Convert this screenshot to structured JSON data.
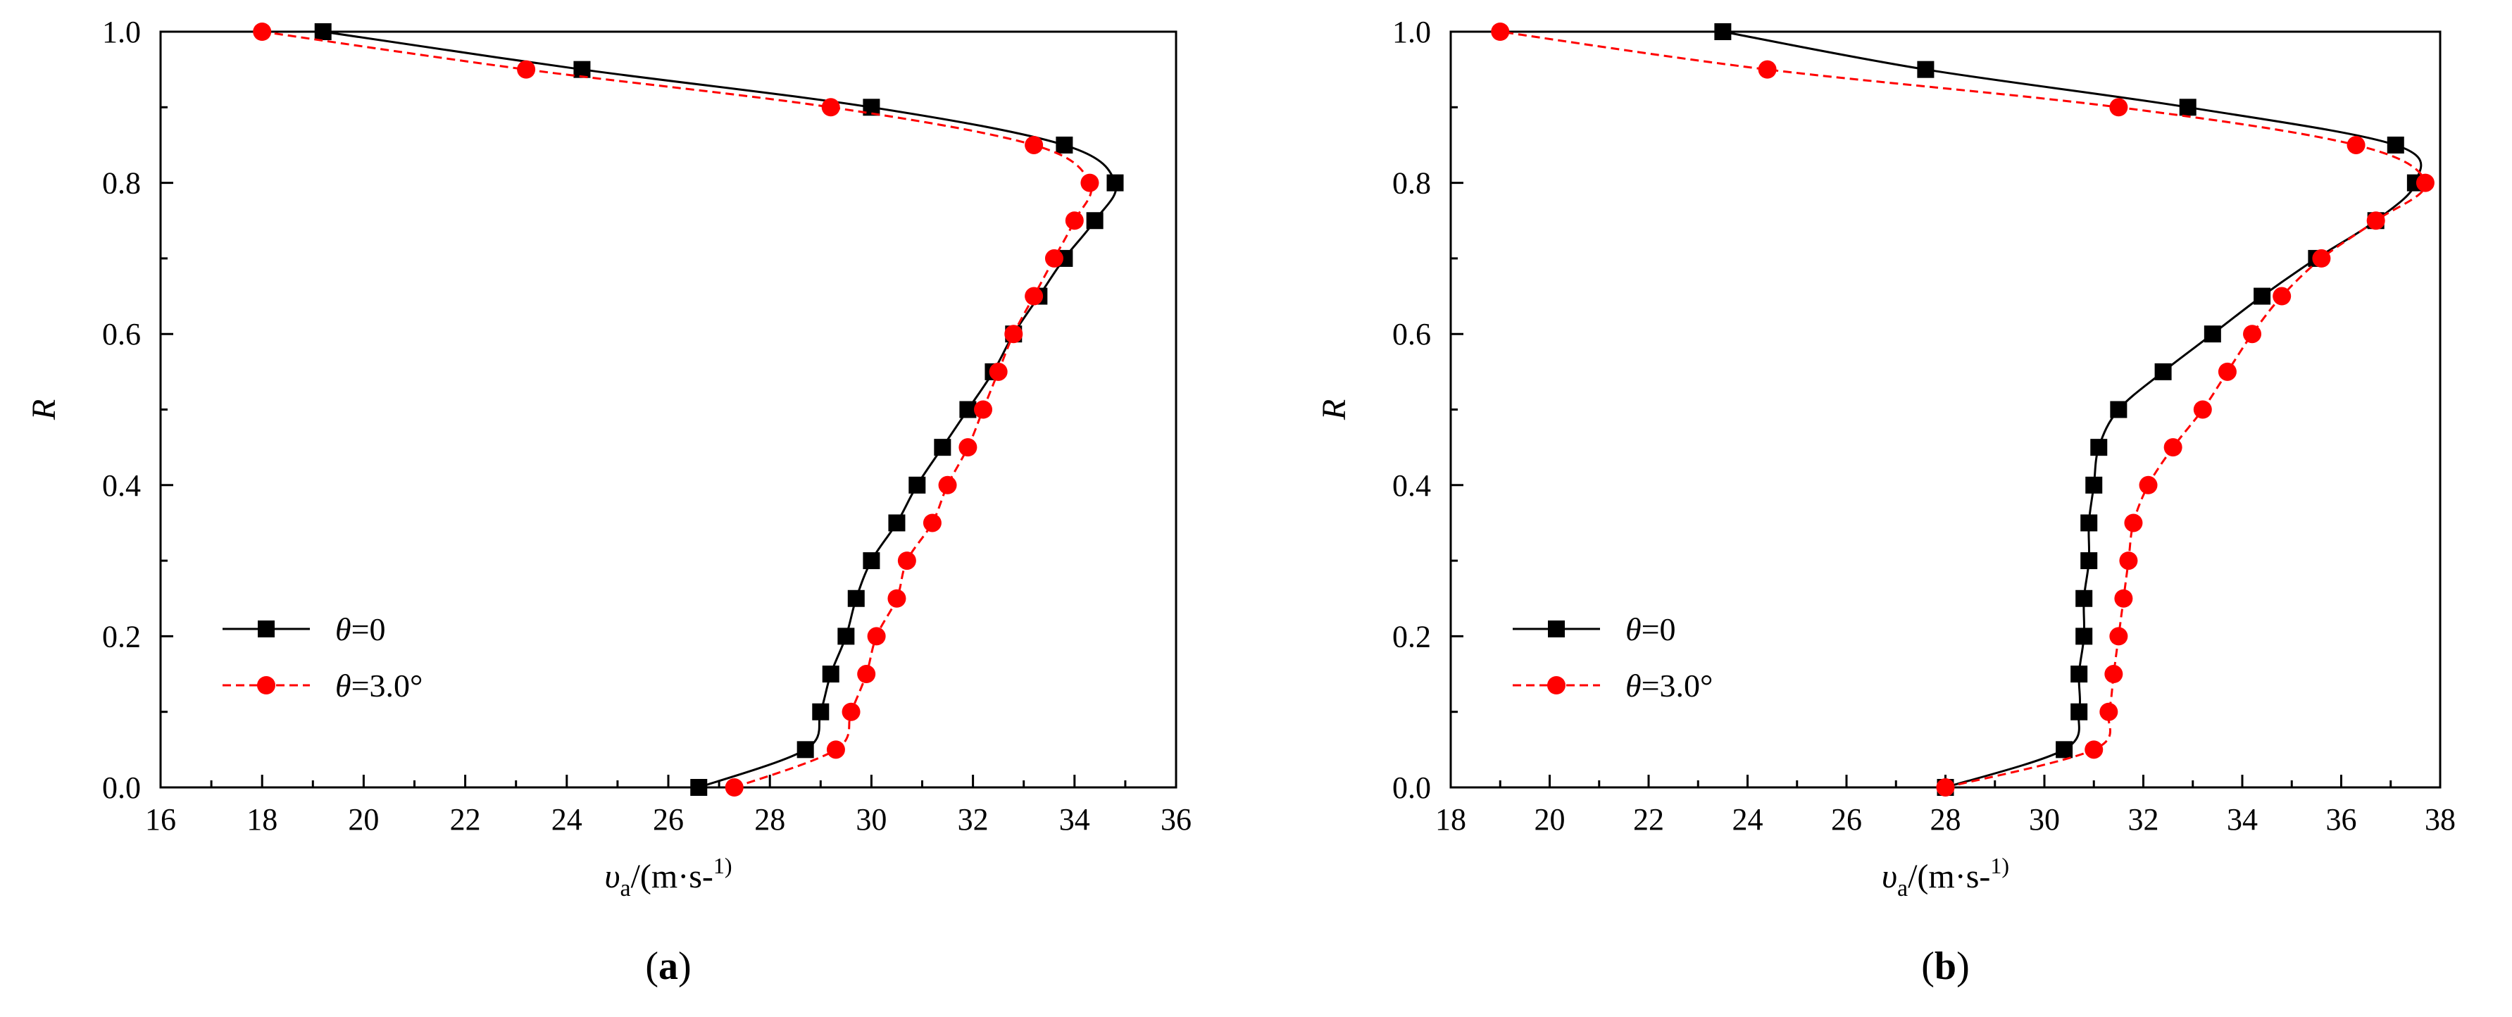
{
  "chart_data": [
    {
      "type": "line",
      "panel_label": "a",
      "xlabel": "υa/(m·s-1)",
      "ylabel": "R",
      "xlim": [
        16,
        36
      ],
      "ylim": [
        0,
        1.0
      ],
      "x_ticks": [
        "16",
        "18",
        "20",
        "22",
        "24",
        "26",
        "28",
        "30",
        "32",
        "34",
        "36"
      ],
      "y_ticks": [
        "0.0",
        "0.2",
        "0.4",
        "0.6",
        "0.8",
        "1.0"
      ],
      "legend_position": "bottom-left",
      "series": [
        {
          "name": "θ=0",
          "color": "#000000",
          "marker": "square",
          "line_style": "solid",
          "points": [
            [
              26.6,
              0.0
            ],
            [
              28.7,
              0.05
            ],
            [
              29.0,
              0.1
            ],
            [
              29.2,
              0.15
            ],
            [
              29.5,
              0.2
            ],
            [
              29.7,
              0.25
            ],
            [
              30.0,
              0.3
            ],
            [
              30.5,
              0.35
            ],
            [
              30.9,
              0.4
            ],
            [
              31.4,
              0.45
            ],
            [
              31.9,
              0.5
            ],
            [
              32.4,
              0.55
            ],
            [
              32.8,
              0.6
            ],
            [
              33.3,
              0.65
            ],
            [
              33.8,
              0.7
            ],
            [
              34.4,
              0.75
            ],
            [
              34.8,
              0.8
            ],
            [
              33.8,
              0.85
            ],
            [
              30.0,
              0.9
            ],
            [
              24.3,
              0.95
            ],
            [
              19.2,
              1.0
            ]
          ]
        },
        {
          "name": "θ=3.0°",
          "color": "#ff0000",
          "marker": "circle",
          "line_style": "dashed",
          "points": [
            [
              27.3,
              0.0
            ],
            [
              29.3,
              0.05
            ],
            [
              29.6,
              0.1
            ],
            [
              29.9,
              0.15
            ],
            [
              30.1,
              0.2
            ],
            [
              30.5,
              0.25
            ],
            [
              30.7,
              0.3
            ],
            [
              31.2,
              0.35
            ],
            [
              31.5,
              0.4
            ],
            [
              31.9,
              0.45
            ],
            [
              32.2,
              0.5
            ],
            [
              32.5,
              0.55
            ],
            [
              32.8,
              0.6
            ],
            [
              33.2,
              0.65
            ],
            [
              33.6,
              0.7
            ],
            [
              34.0,
              0.75
            ],
            [
              34.3,
              0.8
            ],
            [
              33.2,
              0.85
            ],
            [
              29.2,
              0.9
            ],
            [
              23.2,
              0.95
            ],
            [
              18.0,
              1.0
            ]
          ]
        }
      ]
    },
    {
      "type": "line",
      "panel_label": "b",
      "xlabel": "υa/(m·s-1)",
      "ylabel": "R",
      "xlim": [
        18,
        38
      ],
      "ylim": [
        0,
        1.0
      ],
      "x_ticks": [
        "18",
        "20",
        "22",
        "24",
        "26",
        "28",
        "30",
        "32",
        "34",
        "36",
        "38"
      ],
      "y_ticks": [
        "0.0",
        "0.2",
        "0.4",
        "0.6",
        "0.8",
        "1.0"
      ],
      "legend_position": "bottom-left",
      "series": [
        {
          "name": "θ=0",
          "color": "#000000",
          "marker": "square",
          "line_style": "solid",
          "points": [
            [
              28.0,
              0.0
            ],
            [
              30.4,
              0.05
            ],
            [
              30.7,
              0.1
            ],
            [
              30.7,
              0.15
            ],
            [
              30.8,
              0.2
            ],
            [
              30.8,
              0.25
            ],
            [
              30.9,
              0.3
            ],
            [
              30.9,
              0.35
            ],
            [
              31.0,
              0.4
            ],
            [
              31.1,
              0.45
            ],
            [
              31.5,
              0.5
            ],
            [
              32.4,
              0.55
            ],
            [
              33.4,
              0.6
            ],
            [
              34.4,
              0.65
            ],
            [
              35.5,
              0.7
            ],
            [
              36.7,
              0.75
            ],
            [
              37.5,
              0.8
            ],
            [
              37.1,
              0.85
            ],
            [
              32.9,
              0.9
            ],
            [
              27.6,
              0.95
            ],
            [
              23.5,
              1.0
            ]
          ]
        },
        {
          "name": "θ=3.0°",
          "color": "#ff0000",
          "marker": "circle",
          "line_style": "dashed",
          "points": [
            [
              28.0,
              0.0
            ],
            [
              31.0,
              0.05
            ],
            [
              31.3,
              0.1
            ],
            [
              31.4,
              0.15
            ],
            [
              31.5,
              0.2
            ],
            [
              31.6,
              0.25
            ],
            [
              31.7,
              0.3
            ],
            [
              31.8,
              0.35
            ],
            [
              32.1,
              0.4
            ],
            [
              32.6,
              0.45
            ],
            [
              33.2,
              0.5
            ],
            [
              33.7,
              0.55
            ],
            [
              34.2,
              0.6
            ],
            [
              34.8,
              0.65
            ],
            [
              35.6,
              0.7
            ],
            [
              36.7,
              0.75
            ],
            [
              37.7,
              0.8
            ],
            [
              36.3,
              0.85
            ],
            [
              31.5,
              0.9
            ],
            [
              24.4,
              0.95
            ],
            [
              19.0,
              1.0
            ]
          ]
        }
      ]
    }
  ]
}
